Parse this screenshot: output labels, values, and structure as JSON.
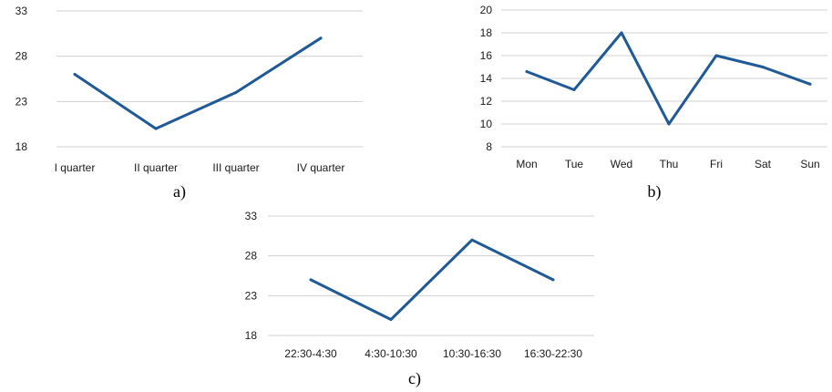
{
  "chart_data": [
    {
      "type": "line",
      "panel_label": "a)",
      "categories": [
        "I quarter",
        "II quarter",
        "III quarter",
        "IV quarter"
      ],
      "y_ticks": [
        "33",
        "28",
        "23",
        "18"
      ],
      "ylim": [
        18,
        33
      ],
      "grid": true,
      "series": [
        {
          "values": [
            26,
            20,
            24,
            30
          ]
        }
      ]
    },
    {
      "type": "line",
      "panel_label": "b)",
      "categories": [
        "Mon",
        "Tue",
        "Wed",
        "Thu",
        "Fri",
        "Sat",
        "Sun"
      ],
      "y_ticks": [
        "20",
        "18",
        "16",
        "14",
        "12",
        "10",
        "8"
      ],
      "ylim": [
        8,
        20
      ],
      "grid": true,
      "series": [
        {
          "values": [
            14.6,
            13,
            18,
            10,
            16,
            15,
            13.5
          ]
        }
      ]
    },
    {
      "type": "line",
      "panel_label": "c)",
      "categories": [
        "22:30-4:30",
        "4:30-10:30",
        "10:30-16:30",
        "16:30-22:30"
      ],
      "y_ticks": [
        "33",
        "28",
        "23",
        "18"
      ],
      "ylim": [
        18,
        33
      ],
      "grid": true,
      "series": [
        {
          "values": [
            25,
            20,
            30,
            25
          ]
        }
      ]
    }
  ],
  "colors": {
    "line": "#1f5a96",
    "grid": "#d0d0d0",
    "text": "#1a1a1a"
  }
}
